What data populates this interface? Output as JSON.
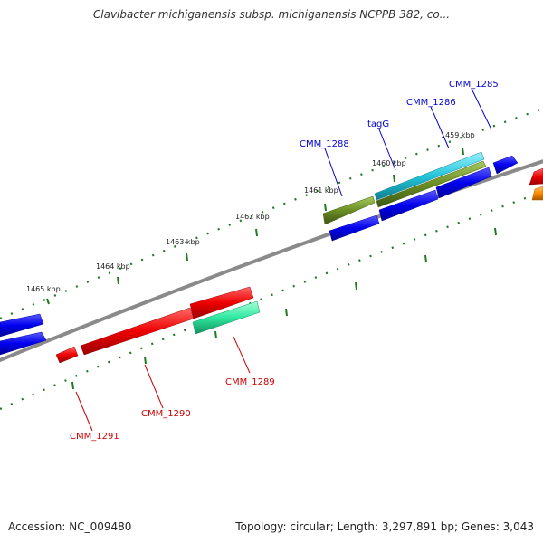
{
  "title": "Clavibacter michiganensis subsp. michiganensis NCPPB 382, co...",
  "footer": {
    "accession": "Accession: NC_009480",
    "summary": "Topology: circular; Length: 3,297,891 bp; Genes: 3,043"
  },
  "ticks": [
    {
      "label": "1459 kbp",
      "pos_kbp": 1459
    },
    {
      "label": "1460 kbp",
      "pos_kbp": 1460
    },
    {
      "label": "1461 kbp",
      "pos_kbp": 1461
    },
    {
      "label": "1462 kbp",
      "pos_kbp": 1462
    },
    {
      "label": "1463 kbp",
      "pos_kbp": 1463
    },
    {
      "label": "1464 kbp",
      "pos_kbp": 1464
    },
    {
      "label": "1465 kbp",
      "pos_kbp": 1465
    }
  ],
  "features": [
    {
      "name": "CMM_1285",
      "strand": "+",
      "label_color": "#0000cc"
    },
    {
      "name": "CMM_1286",
      "strand": "+",
      "label_color": "#0000cc"
    },
    {
      "name": "tagG",
      "strand": "+",
      "label_color": "#0000cc"
    },
    {
      "name": "CMM_1288",
      "strand": "+",
      "label_color": "#0000cc"
    },
    {
      "name": "CMM_1289",
      "strand": "-",
      "label_color": "#cc0000"
    },
    {
      "name": "CMM_1290",
      "strand": "-",
      "label_color": "#cc0000"
    },
    {
      "name": "CMM_1291",
      "strand": "-",
      "label_color": "#cc0000"
    }
  ],
  "colors": {
    "backbone": "#8a8a8a",
    "tick_green": "#1e7a1e",
    "forward_cds": "#0000ee",
    "reverse_cds": "#ee0000",
    "cyan_feature": "#22c4d8",
    "olive_feature": "#6b8e23",
    "teal_feature": "#2ee8a0",
    "orange_feature": "#ff8c00"
  }
}
